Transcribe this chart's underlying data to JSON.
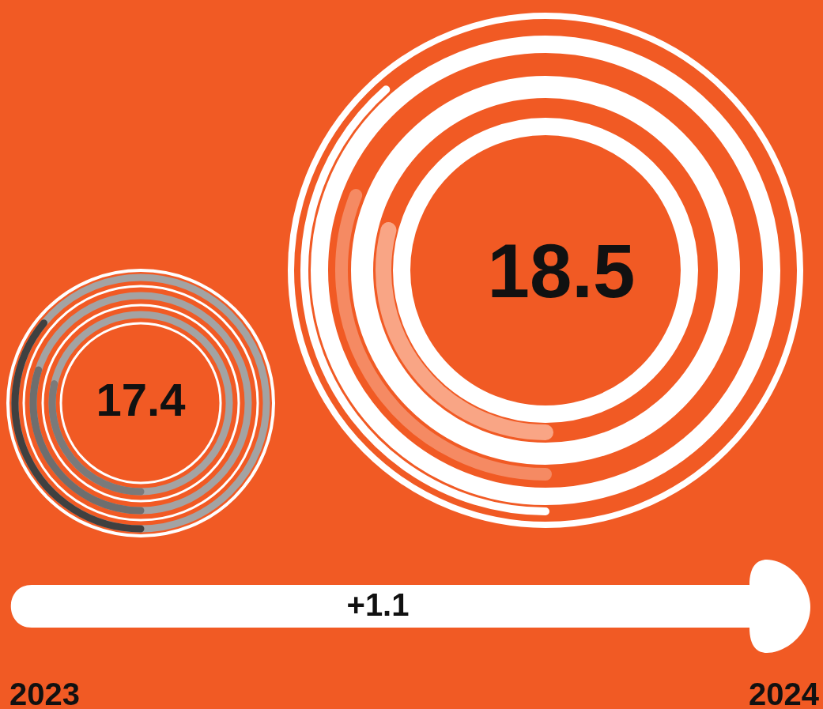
{
  "chart_data": {
    "type": "other",
    "categories": [
      "2023",
      "2024"
    ],
    "values": [
      17.4,
      18.5
    ],
    "data_labels": true,
    "annotations": [
      "+1.1"
    ]
  }
}
